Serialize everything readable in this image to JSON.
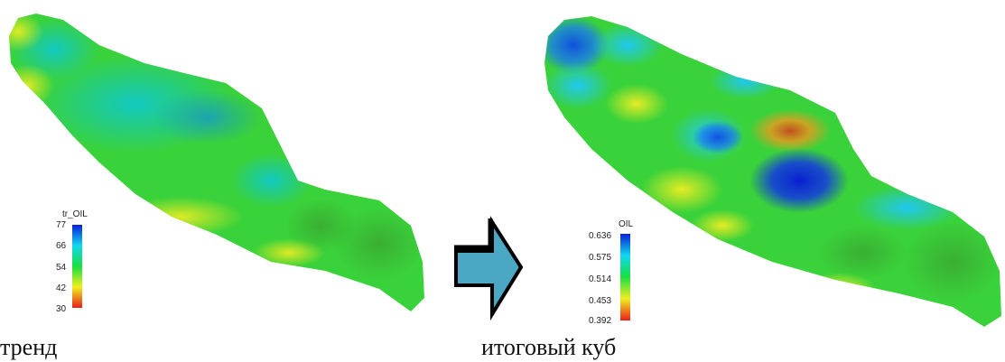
{
  "left_panel": {
    "caption": "тренд",
    "legend": {
      "title": "tr_OIL",
      "ticks": [
        "77",
        "66",
        "54",
        "42",
        "30"
      ]
    }
  },
  "right_panel": {
    "caption": "итоговый куб",
    "legend": {
      "title": "OIL",
      "ticks": [
        "0.636",
        "0.575",
        "0.514",
        "0.453",
        "0.392"
      ]
    }
  },
  "colors": {
    "colormap": [
      "#0a1fd8",
      "#10d8f0",
      "#18e040",
      "#f0ee20",
      "#e8201a"
    ],
    "arrow_fill": "#4aa8c4",
    "arrow_outline": "#000000"
  }
}
